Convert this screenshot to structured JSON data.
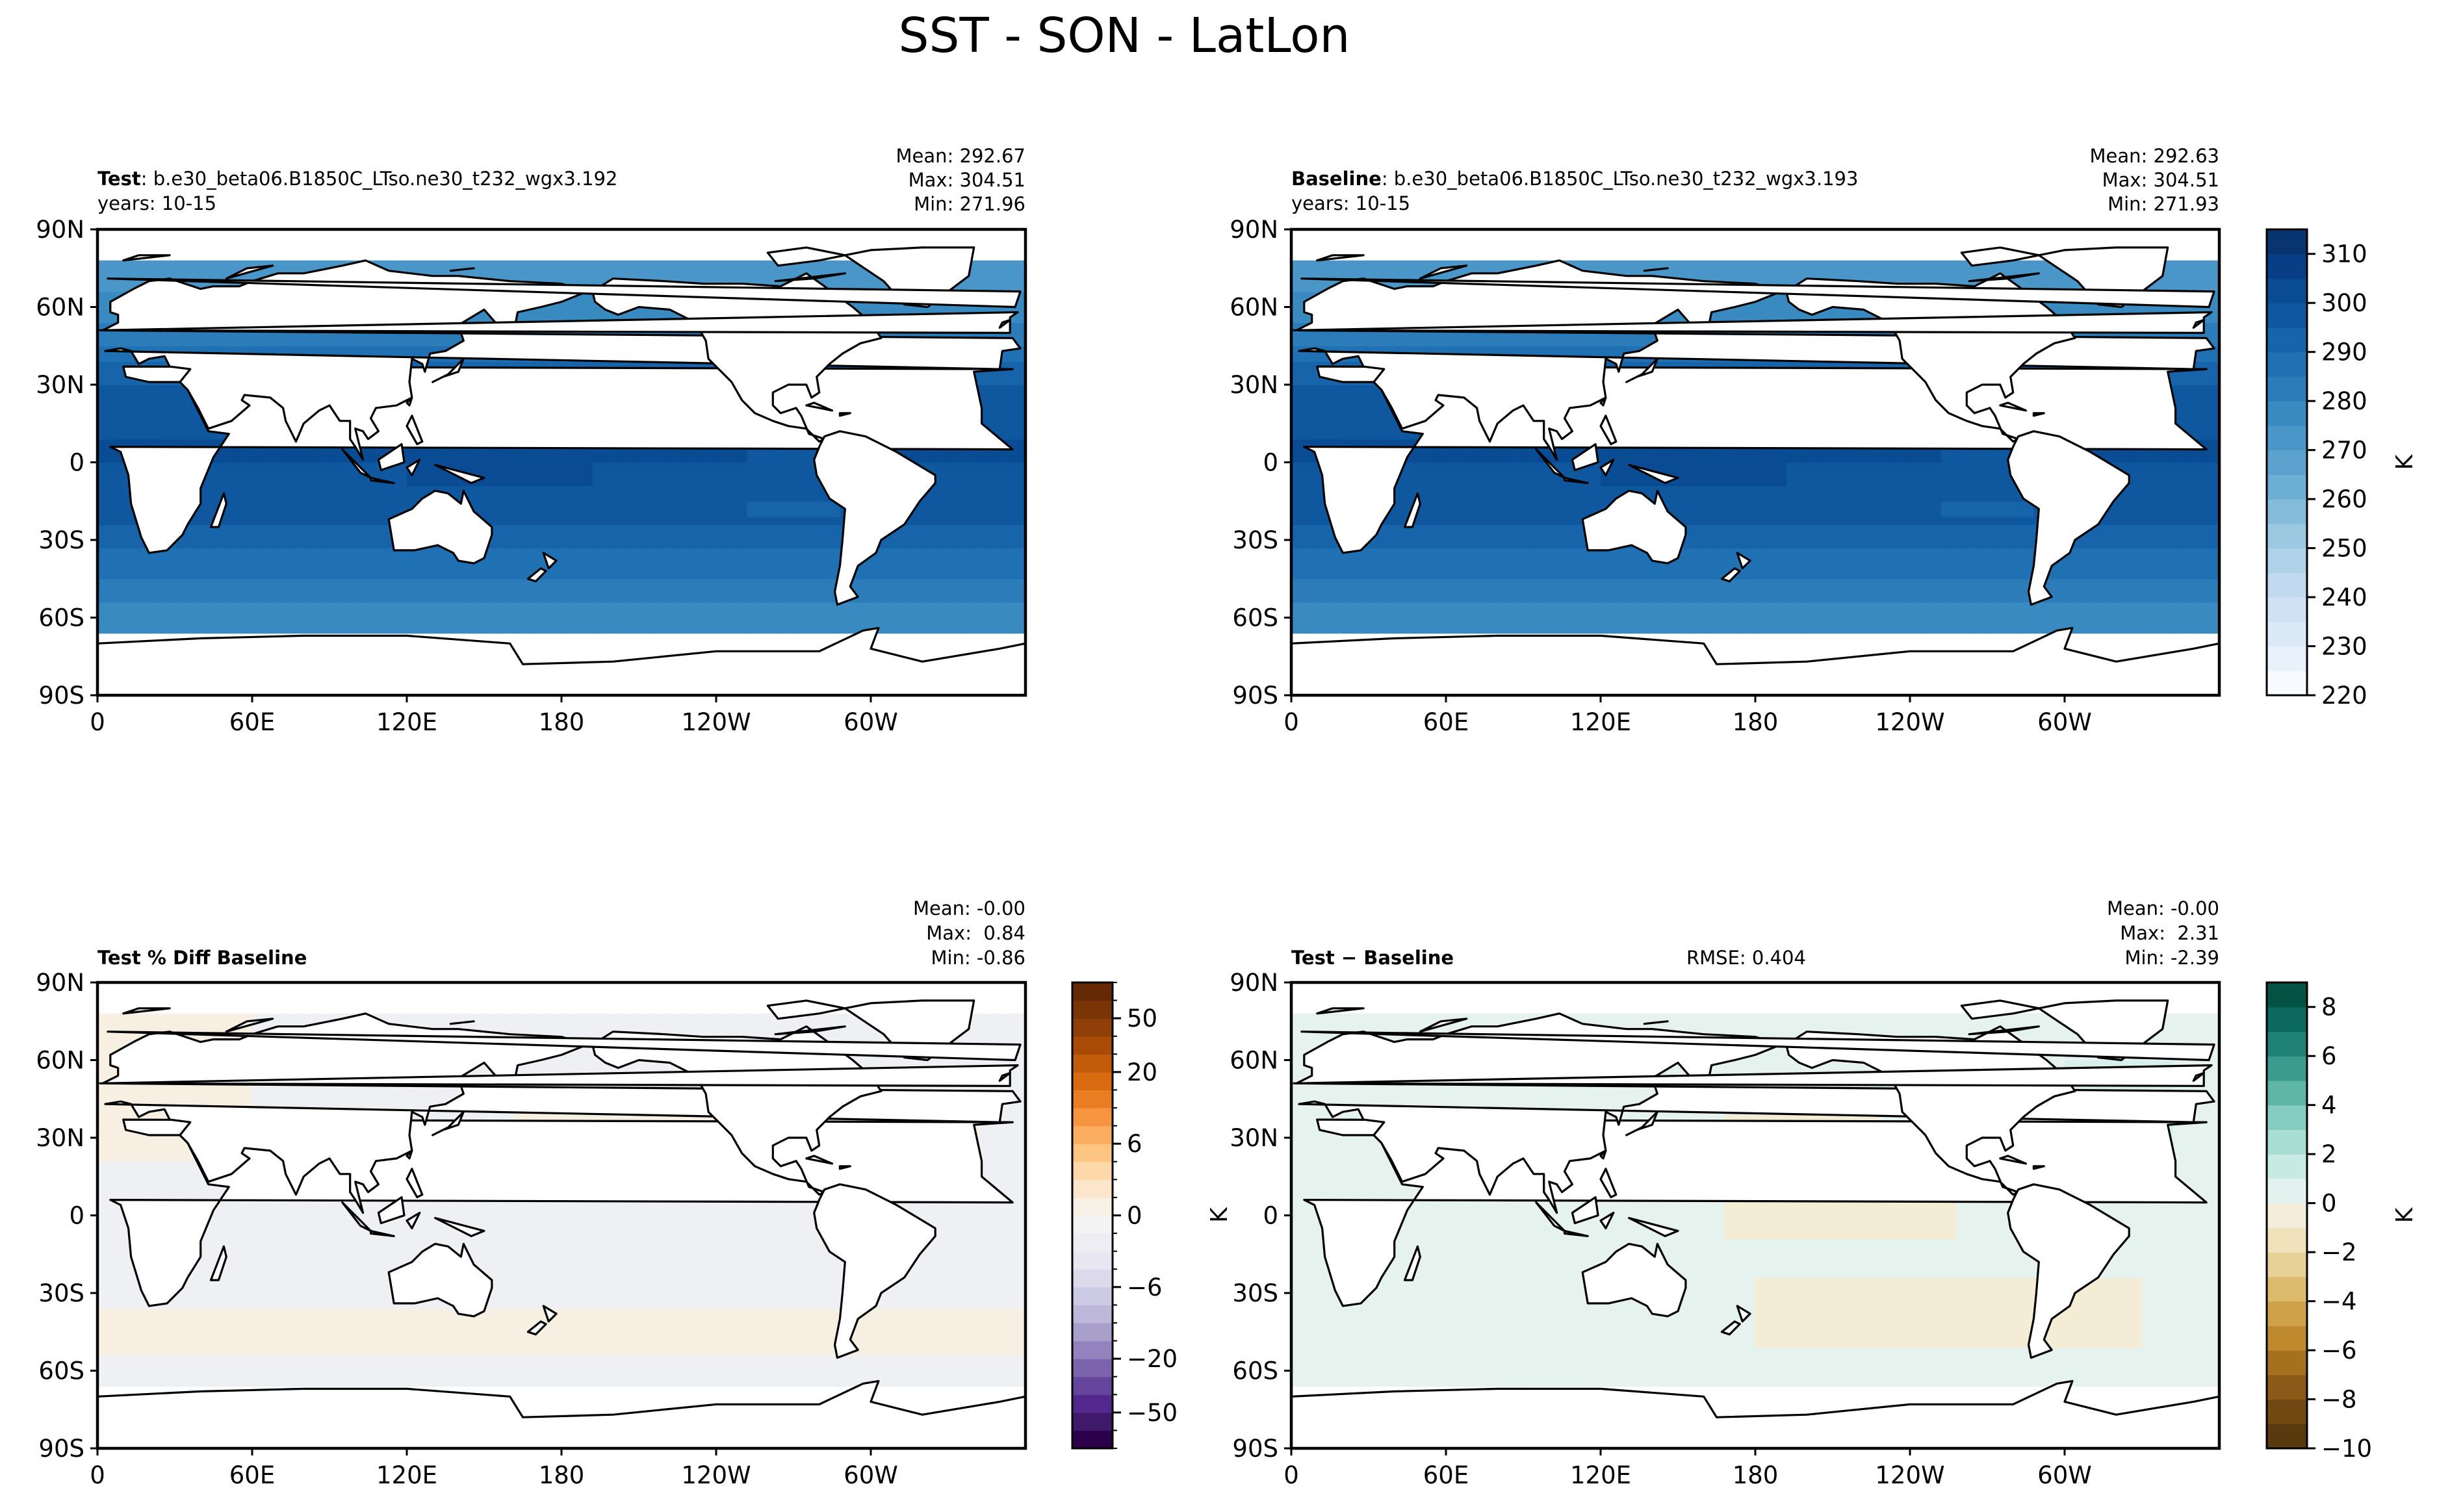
{
  "figure_title": "SST - SON - LatLon",
  "chart_data": [
    {
      "type": "heatmap",
      "id": "test",
      "title_bold": "Test",
      "title_text": ": b.e30_beta06.B1850C_LTso.ne30_t232_wgx3.192",
      "subtitle": "years: 10-15",
      "stats": [
        "Mean: 292.67",
        "Max: 304.51",
        "Min: 271.96"
      ],
      "xticks": [
        "0",
        "60E",
        "120E",
        "180",
        "120W",
        "60W"
      ],
      "yticks": [
        "90N",
        "60N",
        "30N",
        "0",
        "30S",
        "60S",
        "90S"
      ],
      "field": "sst",
      "vmin": 220,
      "vmax": 315
    },
    {
      "type": "heatmap",
      "id": "baseline",
      "title_bold": "Baseline",
      "title_text": ": b.e30_beta06.B1850C_LTso.ne30_t232_wgx3.193",
      "subtitle": "years: 10-15",
      "stats": [
        "Mean: 292.63",
        "Max: 304.51",
        "Min: 271.93"
      ],
      "xticks": [
        "0",
        "60E",
        "120E",
        "180",
        "120W",
        "60W"
      ],
      "yticks": [
        "90N",
        "60N",
        "30N",
        "0",
        "30S",
        "60S",
        "90S"
      ],
      "field": "sst",
      "vmin": 220,
      "vmax": 315,
      "colorbar": {
        "ticks": [
          "310",
          "300",
          "290",
          "280",
          "270",
          "260",
          "250",
          "240",
          "230",
          "220"
        ],
        "tick_values": [
          310,
          300,
          290,
          280,
          270,
          260,
          250,
          240,
          230,
          220
        ],
        "min": 220,
        "max": 315,
        "label": "K",
        "colors": [
          "#f7fbff",
          "#e9f2fb",
          "#dceaf7",
          "#cfe1f2",
          "#c1d9ee",
          "#b0d2e8",
          "#9cc8e2",
          "#85bcdc",
          "#6daed5",
          "#5ba2cf",
          "#4a96c9",
          "#3a8ac2",
          "#2c7cba",
          "#2070b4",
          "#1764ab",
          "#0f58a0",
          "#0a4c93",
          "#083f84",
          "#08346f"
        ]
      }
    },
    {
      "type": "heatmap",
      "id": "pctdiff",
      "title_bold": "Test % Diff Baseline",
      "title_text": "",
      "stats": [
        "Mean: -0.00",
        "Max:  0.84",
        "Min: -0.86"
      ],
      "xticks": [
        "0",
        "60E",
        "120E",
        "180",
        "120W",
        "60W"
      ],
      "yticks": [
        "90N",
        "60N",
        "30N",
        "0",
        "30S",
        "60S",
        "90S"
      ],
      "field": "pctdiff",
      "colorbar": {
        "ticks": [
          "50",
          "20",
          "6",
          "0",
          "−6",
          "−20",
          "−50"
        ],
        "tick_values": [
          50,
          20,
          6,
          0,
          -6,
          -20,
          -50
        ],
        "scale": "symlog-levels",
        "levels": [
          -100,
          -75,
          -50,
          -40,
          -30,
          -20,
          -15,
          -10,
          -8,
          -6,
          -4,
          -2,
          -1,
          0,
          1,
          2,
          4,
          6,
          8,
          10,
          15,
          20,
          30,
          40,
          50,
          75,
          100
        ],
        "label": "",
        "colors": [
          "#2d004b",
          "#3f1a6b",
          "#54278f",
          "#66459c",
          "#7b63ad",
          "#9283be",
          "#a99fcb",
          "#bdb7da",
          "#cdcae3",
          "#dcd9eb",
          "#e8e6f1",
          "#eeedf3",
          "#f4f3f4",
          "#f7f1e6",
          "#fbe6cc",
          "#fdd8a9",
          "#fdc582",
          "#fbae5f",
          "#f69440",
          "#e97d21",
          "#d86b10",
          "#c25b0a",
          "#a94b07",
          "#8f3f07",
          "#7a3506",
          "#652a05"
        ]
      }
    },
    {
      "type": "heatmap",
      "id": "diff",
      "title_bold": "Test − Baseline",
      "title_text": "",
      "rmse": "RMSE: 0.404",
      "stats": [
        "Mean: -0.00",
        "Max:  2.31",
        "Min: -2.39"
      ],
      "xticks": [
        "0",
        "60E",
        "120E",
        "180",
        "120W",
        "60W"
      ],
      "yticks": [
        "90N",
        "60N",
        "30N",
        "0",
        "30S",
        "60S",
        "90S"
      ],
      "field": "diff",
      "left_label": "K",
      "colorbar": {
        "ticks": [
          "8",
          "6",
          "4",
          "2",
          "0",
          "−2",
          "−4",
          "−6",
          "−8",
          "−10"
        ],
        "tick_values": [
          8,
          6,
          4,
          2,
          0,
          -2,
          -4,
          -6,
          -8,
          -10
        ],
        "min": -10,
        "max": 9,
        "label": "K",
        "colors": [
          "#593a0e",
          "#724812",
          "#8c5a18",
          "#a6711f",
          "#bf8a2d",
          "#cfa24a",
          "#dcbb6e",
          "#e7d196",
          "#efe2bb",
          "#f4edd9",
          "#e3f2ef",
          "#c7eae3",
          "#a8ddd3",
          "#86cdc1",
          "#5fb5a6",
          "#3b9b8d",
          "#1f8275",
          "#0b6a5d",
          "#035345"
        ]
      }
    }
  ]
}
